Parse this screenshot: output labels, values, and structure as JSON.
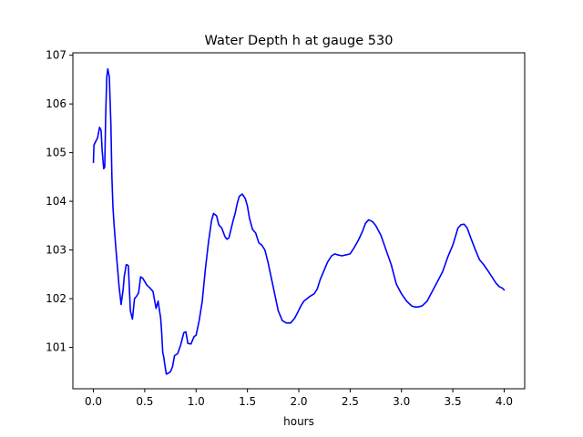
{
  "chart_data": {
    "type": "line",
    "title": "Water Depth h at gauge 530",
    "xlabel": "hours",
    "ylabel": "",
    "xlim": [
      -0.2,
      4.2
    ],
    "ylim": [
      100.15,
      107.05
    ],
    "xticks": [
      0.0,
      0.5,
      1.0,
      1.5,
      2.0,
      2.5,
      3.0,
      3.5,
      4.0
    ],
    "xtick_labels": [
      "0.0",
      "0.5",
      "1.0",
      "1.5",
      "2.0",
      "2.5",
      "3.0",
      "3.5",
      "4.0"
    ],
    "yticks": [
      101,
      102,
      103,
      104,
      105,
      106,
      107
    ],
    "ytick_labels": [
      "101",
      "102",
      "103",
      "104",
      "105",
      "106",
      "107"
    ],
    "grid": false,
    "series": [
      {
        "color": "#0000ff",
        "x": [
          0.0,
          0.005,
          0.02,
          0.04,
          0.06,
          0.075,
          0.085,
          0.1,
          0.11,
          0.12,
          0.13,
          0.14,
          0.155,
          0.17,
          0.18,
          0.19,
          0.2,
          0.22,
          0.25,
          0.27,
          0.29,
          0.3,
          0.32,
          0.34,
          0.36,
          0.38,
          0.4,
          0.42,
          0.44,
          0.46,
          0.48,
          0.5,
          0.52,
          0.55,
          0.58,
          0.61,
          0.63,
          0.655,
          0.665,
          0.675,
          0.685,
          0.695,
          0.71,
          0.73,
          0.75,
          0.77,
          0.79,
          0.82,
          0.85,
          0.88,
          0.9,
          0.92,
          0.95,
          0.98,
          1.0,
          1.03,
          1.06,
          1.09,
          1.12,
          1.15,
          1.17,
          1.2,
          1.22,
          1.25,
          1.28,
          1.3,
          1.32,
          1.36,
          1.38,
          1.4,
          1.42,
          1.45,
          1.48,
          1.5,
          1.52,
          1.55,
          1.58,
          1.61,
          1.64,
          1.67,
          1.7,
          1.74,
          1.77,
          1.8,
          1.84,
          1.88,
          1.92,
          1.96,
          1.99,
          2.02,
          2.05,
          2.08,
          2.11,
          2.15,
          2.18,
          2.21,
          2.25,
          2.28,
          2.32,
          2.35,
          2.38,
          2.42,
          2.46,
          2.5,
          2.54,
          2.58,
          2.62,
          2.65,
          2.68,
          2.72,
          2.75,
          2.8,
          2.85,
          2.9,
          2.95,
          3.0,
          3.05,
          3.1,
          3.13,
          3.16,
          3.2,
          3.25,
          3.3,
          3.35,
          3.4,
          3.45,
          3.5,
          3.55,
          3.58,
          3.61,
          3.64,
          3.68,
          3.72,
          3.76,
          3.8,
          3.84,
          3.88,
          3.92,
          3.95,
          3.98,
          4.0
        ],
        "y": [
          104.8,
          105.15,
          105.22,
          105.3,
          105.52,
          105.45,
          105.05,
          104.67,
          104.7,
          105.8,
          106.55,
          106.72,
          106.55,
          105.6,
          104.5,
          103.9,
          103.55,
          103.0,
          102.25,
          101.88,
          102.2,
          102.45,
          102.7,
          102.68,
          101.75,
          101.58,
          102.0,
          102.05,
          102.12,
          102.45,
          102.42,
          102.35,
          102.28,
          102.22,
          102.15,
          101.8,
          101.95,
          101.6,
          101.3,
          100.9,
          100.8,
          100.65,
          100.45,
          100.47,
          100.5,
          100.6,
          100.83,
          100.87,
          101.05,
          101.3,
          101.32,
          101.08,
          101.07,
          101.22,
          101.25,
          101.55,
          101.95,
          102.6,
          103.15,
          103.6,
          103.75,
          103.7,
          103.52,
          103.45,
          103.28,
          103.22,
          103.25,
          103.6,
          103.75,
          103.95,
          104.1,
          104.15,
          104.05,
          103.9,
          103.65,
          103.42,
          103.35,
          103.15,
          103.1,
          103.0,
          102.75,
          102.35,
          102.05,
          101.75,
          101.55,
          101.5,
          101.5,
          101.6,
          101.72,
          101.85,
          101.95,
          102.0,
          102.05,
          102.1,
          102.2,
          102.4,
          102.6,
          102.75,
          102.88,
          102.92,
          102.9,
          102.88,
          102.9,
          102.92,
          103.05,
          103.2,
          103.38,
          103.55,
          103.62,
          103.58,
          103.5,
          103.3,
          103.0,
          102.7,
          102.3,
          102.1,
          101.95,
          101.85,
          101.83,
          101.83,
          101.85,
          101.95,
          102.15,
          102.35,
          102.55,
          102.85,
          103.1,
          103.45,
          103.52,
          103.53,
          103.45,
          103.22,
          103.0,
          102.8,
          102.7,
          102.58,
          102.45,
          102.32,
          102.25,
          102.22,
          102.18
        ]
      }
    ]
  }
}
